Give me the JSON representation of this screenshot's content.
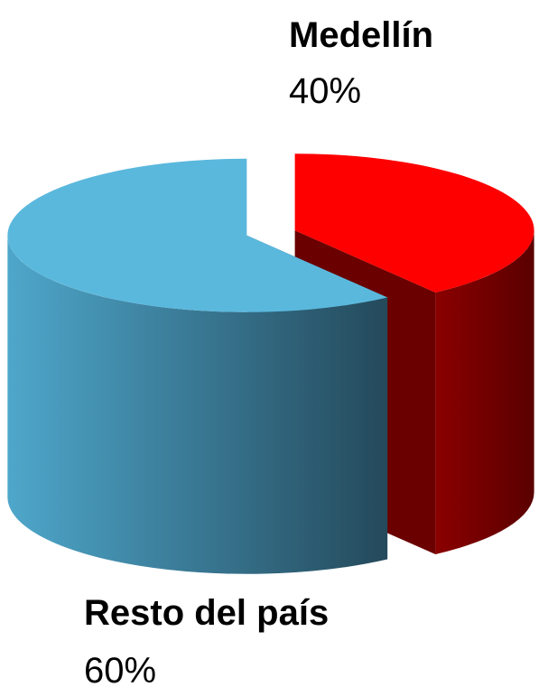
{
  "chart_data": {
    "type": "pie3d",
    "categories": [
      "Medellín",
      "Resto del país"
    ],
    "values": [
      40,
      60
    ],
    "value_labels": [
      "40%",
      "60%"
    ],
    "colors": [
      "#ff0000",
      "#5bb8dd"
    ]
  }
}
